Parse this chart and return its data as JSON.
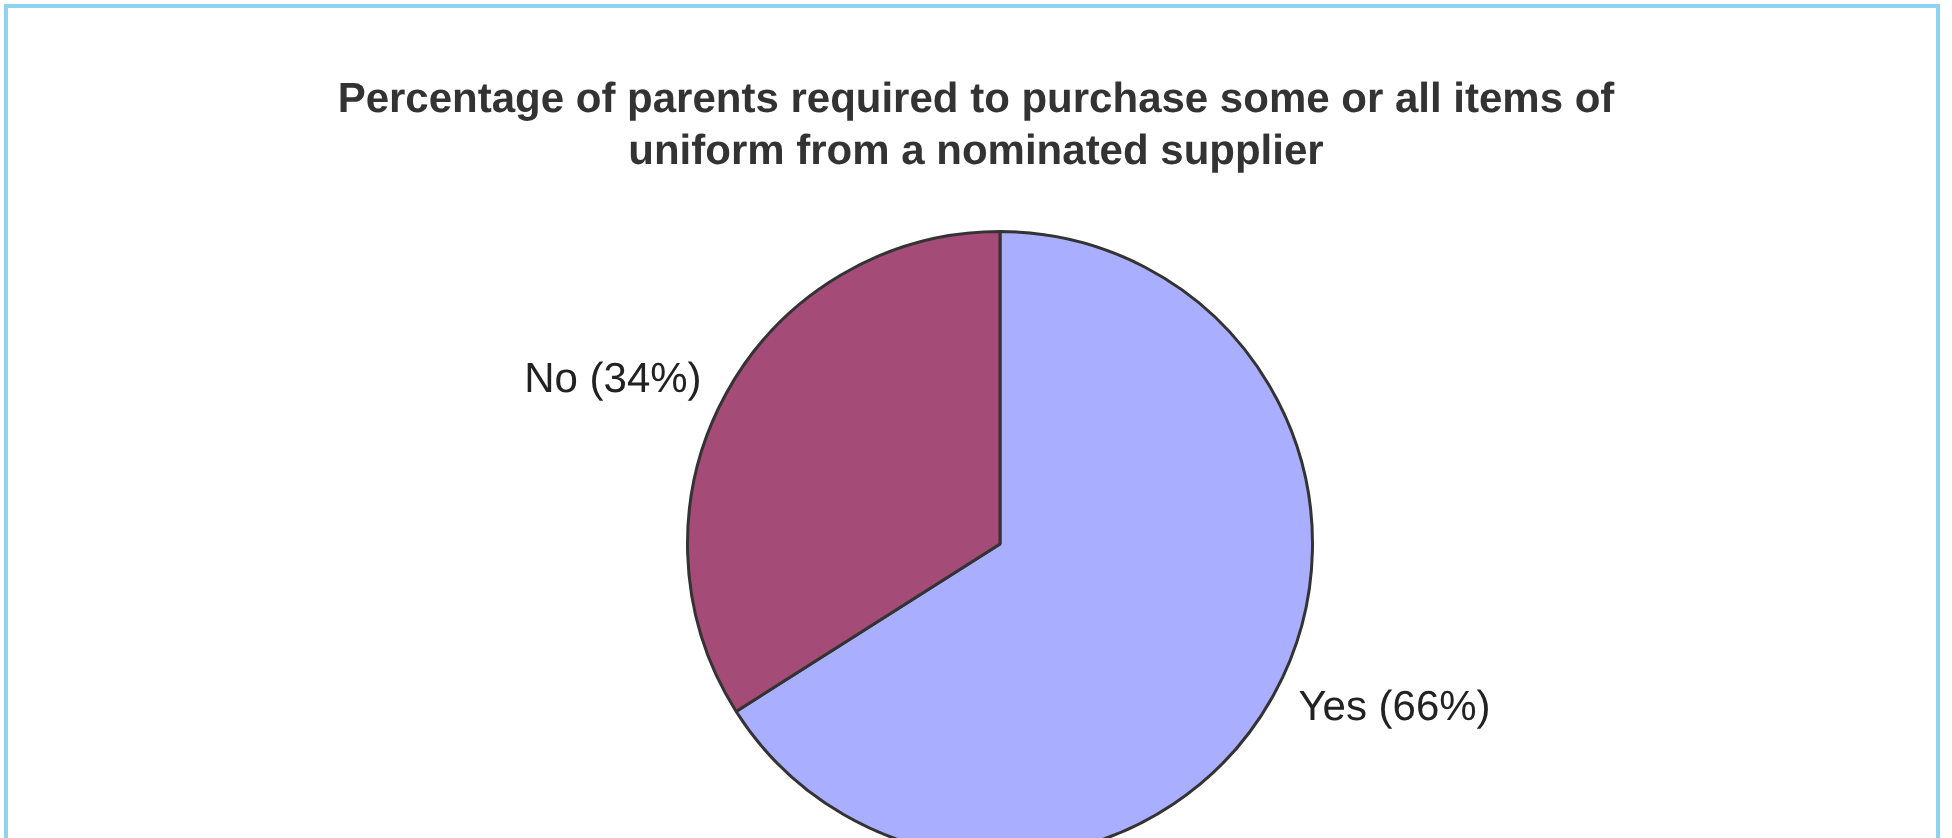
{
  "chart_data": {
    "type": "pie",
    "title": "Percentage of parents required to purchase some or all items of uniform from a nominated supplier",
    "categories": [
      "Yes (66%)",
      "No (34%)"
    ],
    "values": [
      66,
      34
    ],
    "colors": [
      "#aaaefe",
      "#a44b78"
    ],
    "legend": false
  }
}
